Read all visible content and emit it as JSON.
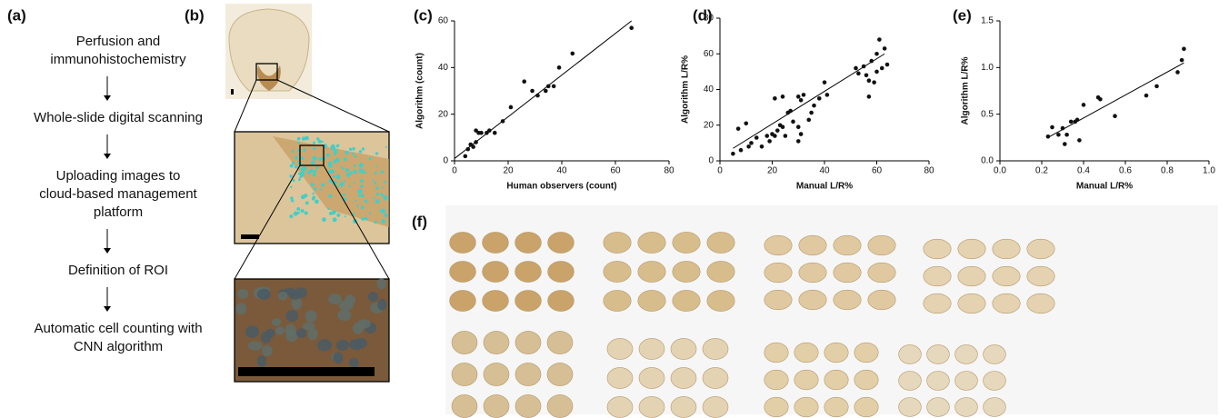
{
  "panels": {
    "a": {
      "label": "(a)",
      "steps": [
        [
          "Perfusion and",
          "immunohistochemistry"
        ],
        [
          "Whole-slide digital scanning"
        ],
        [
          "Uploading images to",
          "cloud-based management",
          "platform"
        ],
        [
          "Definition of ROI"
        ],
        [
          "Automatic cell counting with",
          "CNN algorithm"
        ]
      ]
    },
    "b": {
      "label": "(b)"
    },
    "f": {
      "label": "(f)"
    }
  },
  "chart_data": [
    {
      "type": "scatter",
      "title": "(c)",
      "x_label": "Human observers (count)",
      "y_label": "Algorithm (count)",
      "xlim": [
        0,
        80
      ],
      "xticks": [
        0,
        20,
        40,
        60,
        80
      ],
      "ylim": [
        0,
        60
      ],
      "yticks": [
        0,
        20,
        40,
        60
      ],
      "color": "#111111",
      "x": [
        4,
        5,
        6,
        7,
        8,
        8,
        9,
        10,
        12,
        13,
        15,
        18,
        21,
        26,
        29,
        31,
        34,
        35,
        37,
        39,
        44,
        66
      ],
      "values": [
        2,
        5,
        7,
        6,
        8,
        13,
        12,
        12,
        12,
        13,
        12,
        17,
        23,
        34,
        30,
        28,
        30,
        32,
        32,
        40,
        46,
        57
      ],
      "trend_line": {
        "x": [
          0,
          66
        ],
        "y": [
          1,
          60
        ]
      }
    },
    {
      "type": "scatter",
      "title": "(d)",
      "x_label": "Manual L/R%",
      "y_label": "Algorithm L/R%",
      "xlim": [
        0,
        80
      ],
      "xticks": [
        0,
        20,
        40,
        60,
        80
      ],
      "ylim": [
        0,
        80
      ],
      "yticks": [
        0,
        20,
        40,
        60,
        80
      ],
      "color": "#111111",
      "x": [
        5,
        7,
        8,
        10,
        11,
        12,
        14,
        16,
        18,
        19,
        20,
        21,
        21,
        22,
        23,
        24,
        24,
        25,
        26,
        27,
        28,
        30,
        30,
        30,
        31,
        31,
        32,
        34,
        35,
        36,
        38,
        40,
        41,
        52,
        53,
        55,
        56,
        57,
        57,
        58,
        59,
        60,
        60,
        61,
        62,
        63,
        64
      ],
      "values": [
        4,
        18,
        6,
        21,
        8,
        10,
        13,
        8,
        14,
        11,
        15,
        35,
        14,
        17,
        20,
        36,
        19,
        14,
        27,
        28,
        22,
        36,
        11,
        19,
        34,
        15,
        37,
        23,
        27,
        31,
        35,
        44,
        37,
        52,
        49,
        53,
        48,
        36,
        45,
        56,
        44,
        50,
        60,
        68,
        52,
        63,
        54
      ],
      "trend_line": {
        "x": [
          5,
          63
        ],
        "y": [
          7,
          60
        ]
      }
    },
    {
      "type": "scatter",
      "title": "(e)",
      "x_label": "Manual L/R%",
      "y_label": "Algorithm L/R%",
      "xlim": [
        0,
        1
      ],
      "xticks": [
        {
          "value": 0,
          "label": "0.0"
        },
        0.2,
        0.4,
        0.6,
        0.8,
        {
          "value": 1,
          "label": "1.0"
        }
      ],
      "ylim": [
        0,
        1.5
      ],
      "yticks": [
        {
          "value": 0,
          "label": "0.0"
        },
        0.5,
        {
          "value": 1,
          "label": "1.0"
        },
        1.5
      ],
      "color": "#111111",
      "x": [
        0.23,
        0.25,
        0.28,
        0.3,
        0.31,
        0.32,
        0.34,
        0.36,
        0.37,
        0.38,
        0.4,
        0.47,
        0.48,
        0.55,
        0.7,
        0.75,
        0.85,
        0.87,
        0.88
      ],
      "values": [
        0.26,
        0.36,
        0.28,
        0.35,
        0.18,
        0.28,
        0.42,
        0.42,
        0.44,
        0.22,
        0.6,
        0.68,
        0.66,
        0.48,
        0.7,
        0.8,
        0.95,
        1.08,
        1.2
      ],
      "trend_line": {
        "x": [
          0.23,
          0.88
        ],
        "y": [
          0.25,
          1.05
        ]
      }
    }
  ]
}
